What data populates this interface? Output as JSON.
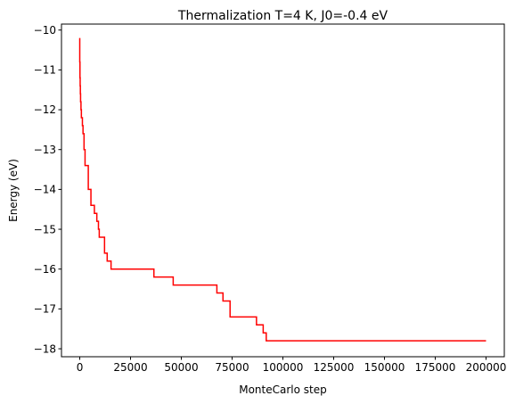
{
  "chart_data": {
    "type": "line",
    "title": "Thermalization T=4 K, J0=-0.4 eV",
    "xlabel": "MonteCarlo step",
    "ylabel": "Energy (eV)",
    "xlim": [
      -9000,
      209000
    ],
    "ylim": [
      -18.2,
      -9.85
    ],
    "grid": false,
    "xticks": [
      0,
      25000,
      50000,
      75000,
      100000,
      125000,
      150000,
      175000,
      200000
    ],
    "xtick_labels": [
      "0",
      "25000",
      "50000",
      "75000",
      "100000",
      "125000",
      "150000",
      "175000",
      "200000"
    ],
    "yticks": [
      -10,
      -11,
      -12,
      -13,
      -14,
      -15,
      -16,
      -17,
      -18
    ],
    "ytick_labels": [
      "−10",
      "−11",
      "−12",
      "−13",
      "−14",
      "−15",
      "−16",
      "−17",
      "−18"
    ],
    "series": [
      {
        "color": "#ff0000",
        "step": true,
        "x": [
          0,
          100,
          200,
          300,
          400,
          600,
          800,
          1000,
          1300,
          1600,
          2100,
          2600,
          3000,
          4200,
          5500,
          7200,
          8400,
          9200,
          9600,
          11200,
          12200,
          13500,
          15400,
          36500,
          46000,
          67500,
          69000,
          70500,
          74000,
          87000,
          90300,
          91800,
          116000,
          200000
        ],
        "y": [
          -10.2,
          -10.8,
          -11.2,
          -11.4,
          -11.6,
          -11.8,
          -12.0,
          -12.2,
          -12.2,
          -12.4,
          -12.6,
          -13.0,
          -13.4,
          -13.4,
          -14.0,
          -14.4,
          -14.6,
          -14.8,
          -15.0,
          -15.2,
          -15.2,
          -15.6,
          -15.8,
          -16.0,
          -16.2,
          -16.4,
          -16.6,
          -16.6,
          -16.8,
          -17.2,
          -17.4,
          -17.6,
          -17.8,
          -17.8
        ]
      }
    ]
  }
}
